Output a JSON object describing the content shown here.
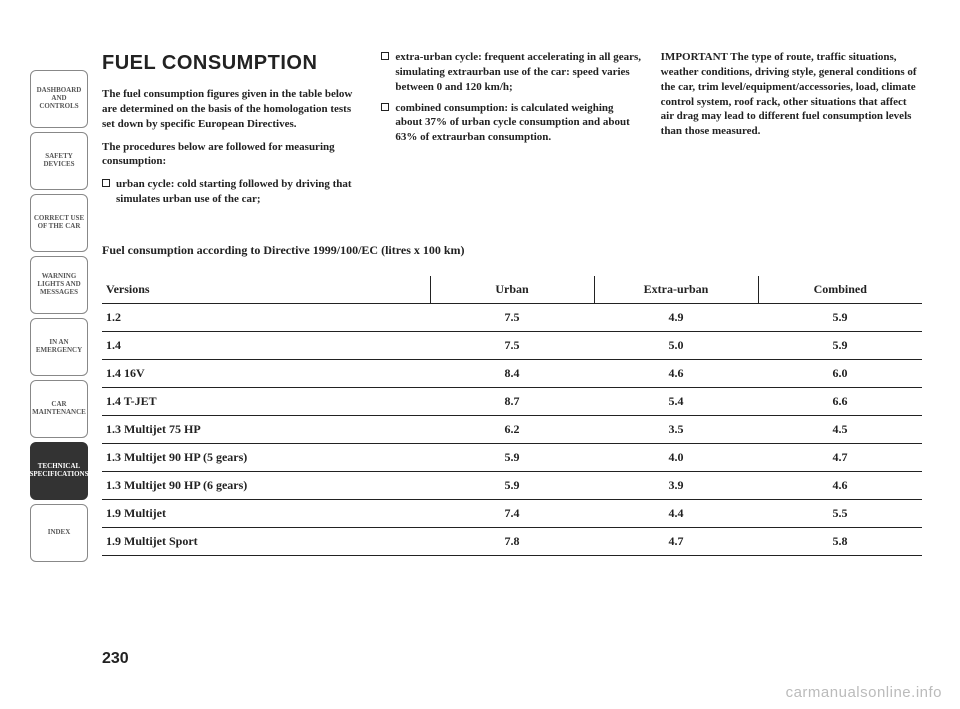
{
  "sidebar": {
    "tabs": [
      {
        "label": "DASHBOARD AND CONTROLS",
        "active": false
      },
      {
        "label": "SAFETY DEVICES",
        "active": false
      },
      {
        "label": "CORRECT USE OF THE CAR",
        "active": false
      },
      {
        "label": "WARNING LIGHTS AND MESSAGES",
        "active": false
      },
      {
        "label": "IN AN EMERGENCY",
        "active": false
      },
      {
        "label": "CAR MAINTENANCE",
        "active": false
      },
      {
        "label": "TECHNICAL SPECIFICATIONS",
        "active": true
      },
      {
        "label": "INDEX",
        "active": false
      }
    ]
  },
  "heading": "FUEL CONSUMPTION",
  "col1": {
    "p1": "The fuel consumption figures given in the table below are determined on the basis of the homologation tests set down by specific European Directives.",
    "p2": "The procedures below are followed for measuring consumption:",
    "b1": "urban cycle: cold starting followed by driving that simulates urban use of the car;"
  },
  "col2": {
    "b1": "extra-urban cycle: frequent accelerating in all gears, simulating extraurban use of the car: speed varies between 0 and 120 km/h;",
    "b2": "combined consumption: is calculated weighing about 37% of urban cycle consumption and about 63% of extraurban consumption."
  },
  "col3": {
    "p1": "IMPORTANT The type of route, traffic situations, weather conditions, driving style, general conditions of the car, trim level/equipment/accessories, load, climate control system, roof rack, other situations that affect air drag may lead to different fuel consumption levels than those measured."
  },
  "table": {
    "caption": "Fuel consumption according to Directive 1999/100/EC (litres x 100 km)",
    "headers": [
      "Versions",
      "Urban",
      "Extra-urban",
      "Combined"
    ],
    "rows": [
      [
        "1.2",
        "7.5",
        "4.9",
        "5.9"
      ],
      [
        "1.4",
        "7.5",
        "5.0",
        "5.9"
      ],
      [
        "1.4 16V",
        "8.4",
        "4.6",
        "6.0"
      ],
      [
        "1.4 T-JET",
        "8.7",
        "5.4",
        "6.6"
      ],
      [
        "1.3 Multijet 75 HP",
        "6.2",
        "3.5",
        "4.5"
      ],
      [
        "1.3 Multijet 90 HP (5 gears)",
        "5.9",
        "4.0",
        "4.7"
      ],
      [
        "1.3 Multijet 90 HP (6 gears)",
        "5.9",
        "3.9",
        "4.6"
      ],
      [
        "1.9 Multijet",
        "7.4",
        "4.4",
        "5.5"
      ],
      [
        "1.9 Multijet Sport",
        "7.8",
        "4.7",
        "5.8"
      ]
    ]
  },
  "page_number": "230",
  "watermark": "carmanualsonline.info"
}
